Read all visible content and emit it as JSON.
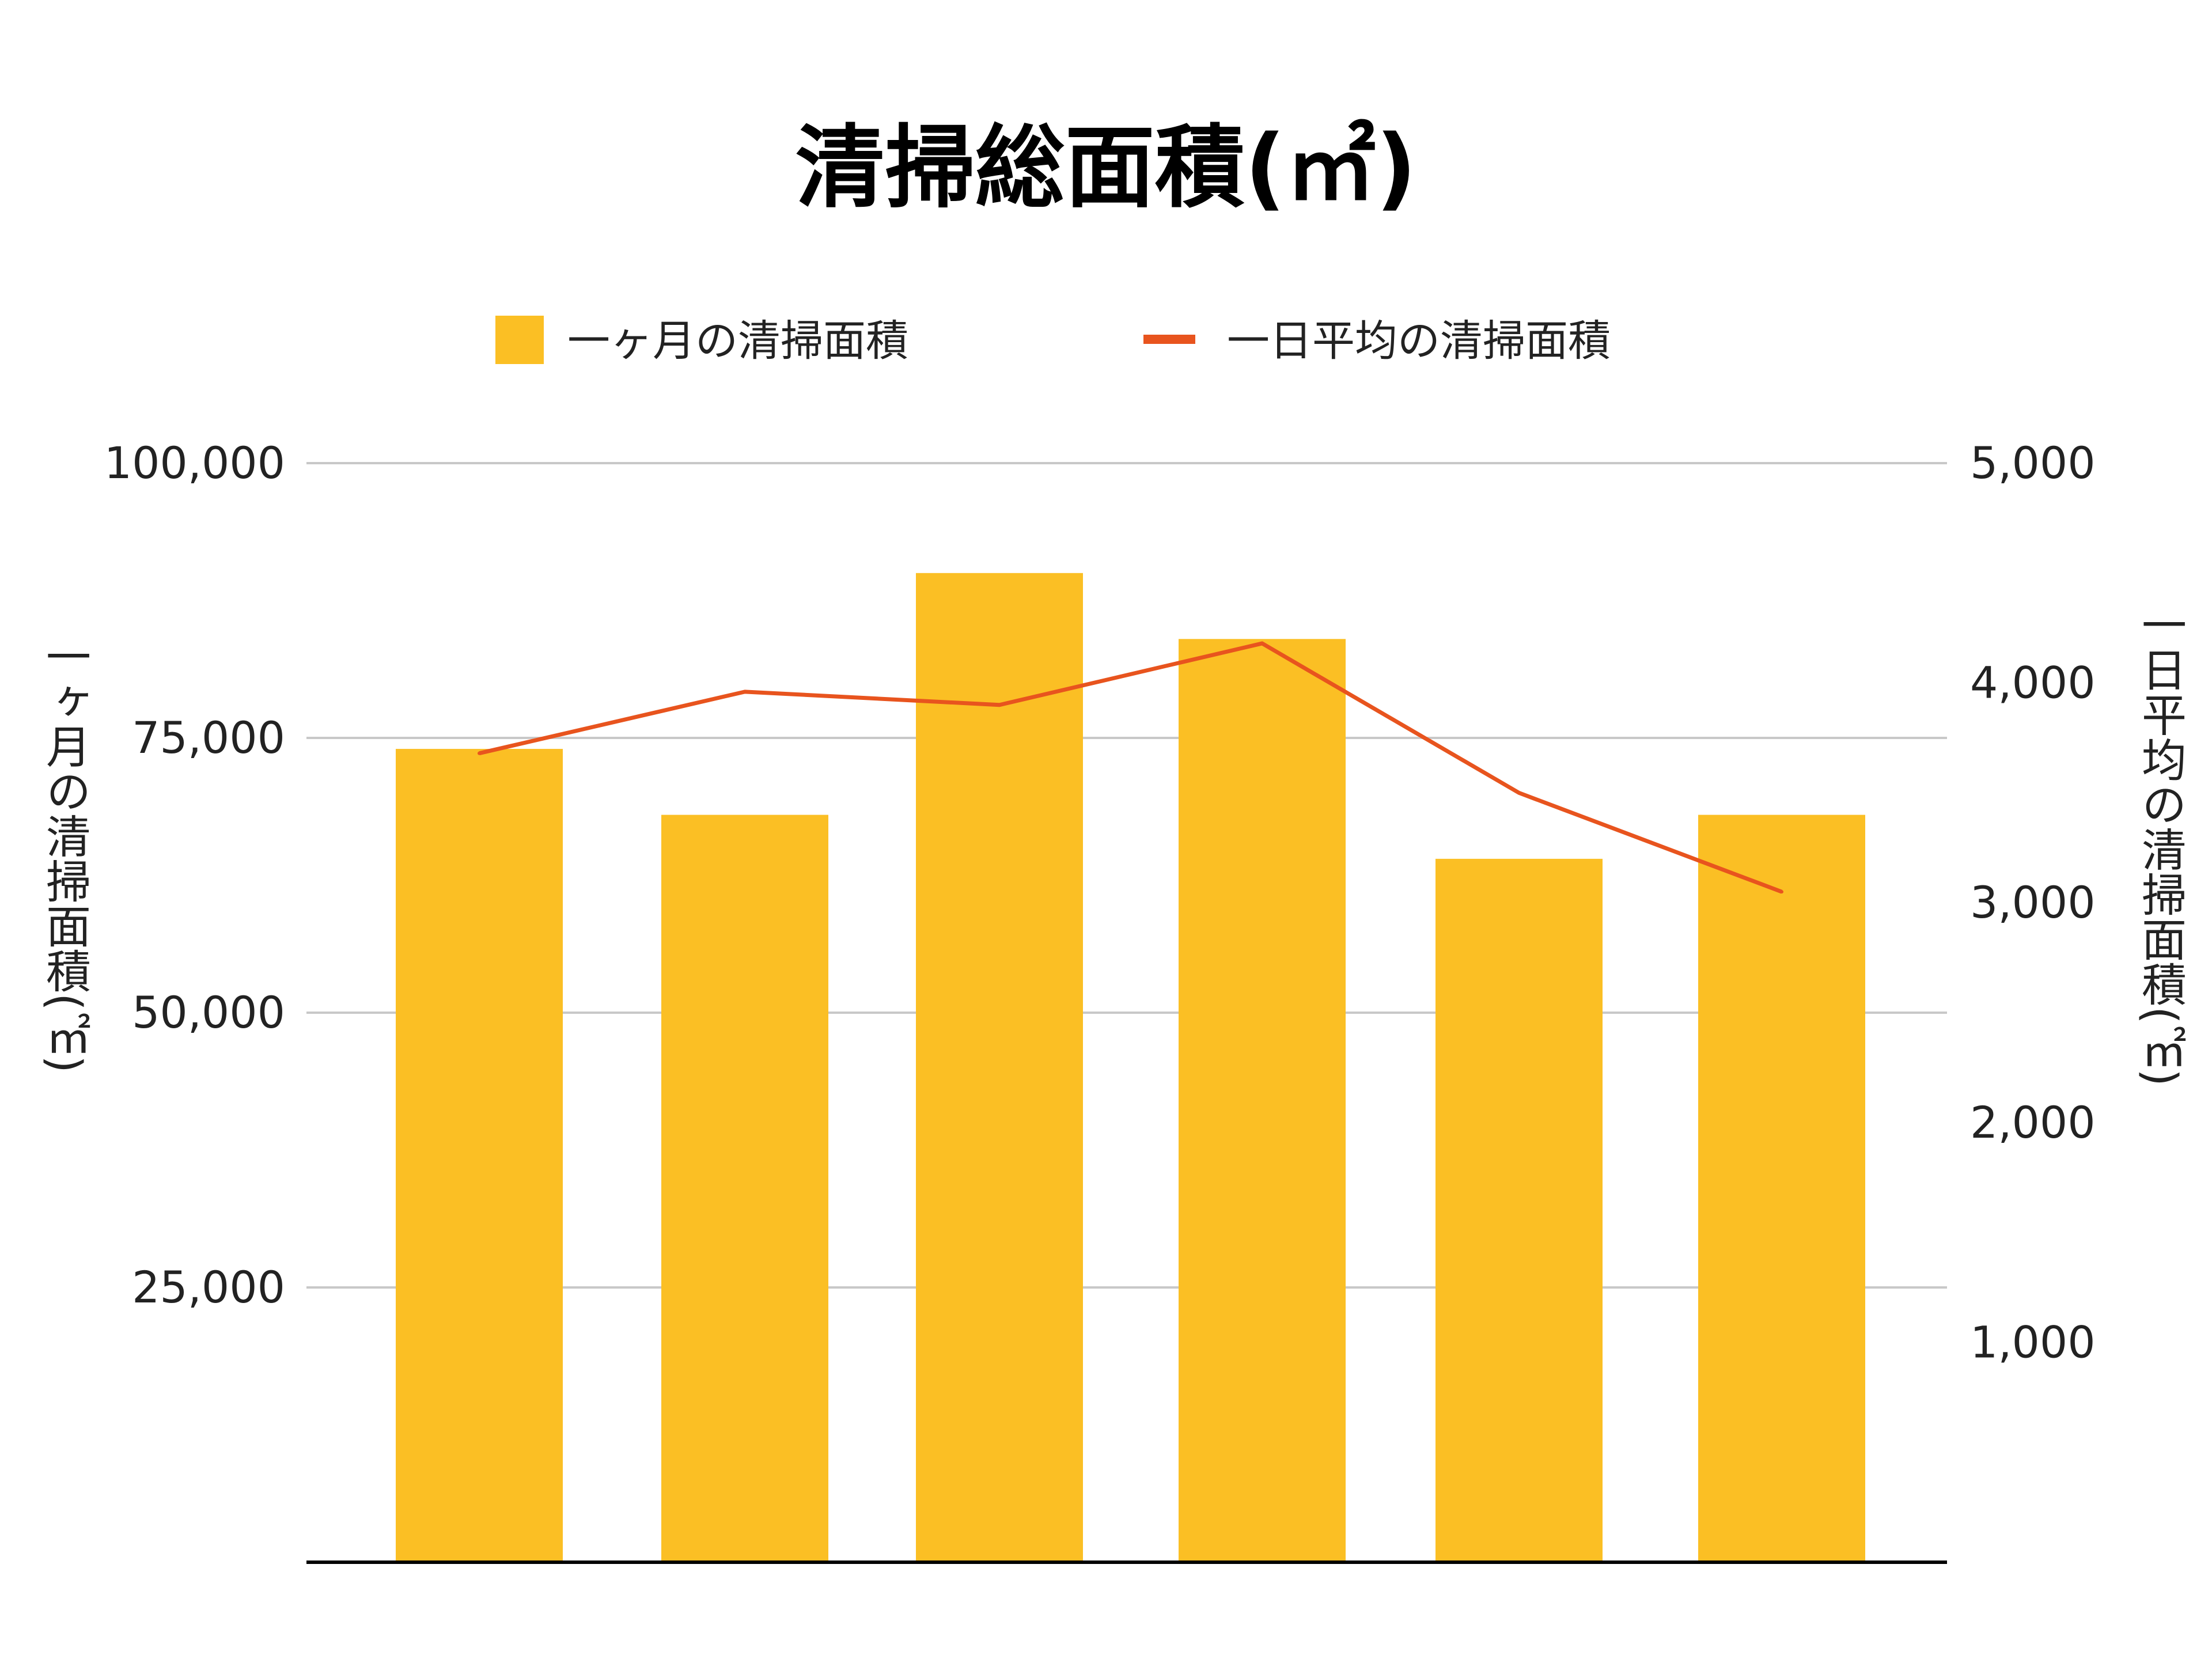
{
  "chart_data": {
    "type": "bar",
    "title": "清掃総面積(㎡)",
    "categories": [
      "",
      "",
      "",
      "",
      "",
      ""
    ],
    "series": [
      {
        "name": "一ヶ月の清掃面積",
        "type": "bar",
        "axis": "left",
        "color": "#fbbf24",
        "values": [
          74000,
          68000,
          90000,
          84000,
          64000,
          68000
        ]
      },
      {
        "name": "一日平均の清掃面積",
        "type": "line",
        "axis": "right",
        "color": "#e8541e",
        "values": [
          3680,
          3960,
          3900,
          4180,
          3500,
          3050
        ]
      }
    ],
    "ylabel": "一ヶ月の清掃面積(㎡)",
    "y2label": "一日平均の清掃面積(㎡)",
    "ylim": [
      0,
      100000
    ],
    "y2lim": [
      0,
      5000
    ],
    "yticks": [
      "25,000",
      "50,000",
      "75,000",
      "100,000"
    ],
    "y2ticks": [
      "1,000",
      "2,000",
      "3,000",
      "4,000",
      "5,000"
    ],
    "grid": true,
    "legend": "top-center"
  }
}
